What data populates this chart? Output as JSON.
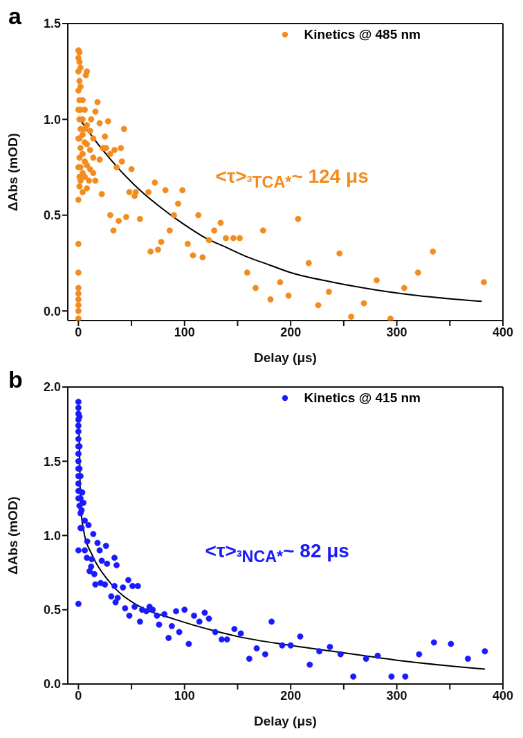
{
  "chart_data": [
    {
      "type": "scatter",
      "title": "a",
      "xlabel": "Delay (μs)",
      "ylabel": "ΔAbs (mOD)",
      "annotations": [
        "<τ>$_{³TCA*}$~ 124 μs"
      ],
      "xlim": [
        -10,
        400
      ],
      "ylim": [
        -0.05,
        1.5
      ],
      "xticks": [
        0,
        {
          "value": 50,
          "label": null
        },
        100,
        {
          "value": 150,
          "label": null
        },
        200,
        {
          "value": 250,
          "label": null
        },
        300,
        {
          "value": 350,
          "label": null
        },
        400
      ],
      "yticks": [
        {
          "value": 0,
          "label": "0.0"
        },
        {
          "value": 0.5,
          "label": "0.5"
        },
        {
          "value": 1,
          "label": "1.0"
        },
        {
          "value": 1.5,
          "label": "1.5"
        }
      ],
      "legend": "top right",
      "line_style": "solid",
      "series": [
        {
          "name": "Kinetics @ 485 nm",
          "marker": "circle",
          "color": "#f28c1e",
          "x": [
            0,
            0,
            0,
            0,
            0,
            0,
            0,
            0,
            0,
            0,
            0,
            0,
            0,
            0,
            0,
            0,
            1,
            1,
            1,
            1,
            1,
            1,
            1,
            1,
            1,
            2,
            2,
            2,
            2,
            2,
            2,
            2,
            4,
            4,
            4,
            4,
            4,
            4,
            6,
            6,
            6,
            6,
            6,
            8,
            8,
            8,
            8,
            8,
            11,
            11,
            11,
            14,
            14,
            14,
            7,
            18,
            28,
            43,
            20,
            25,
            12,
            16,
            23,
            26,
            34,
            40,
            30,
            41,
            20,
            36,
            50,
            10,
            16,
            22,
            48,
            53,
            54,
            66,
            72,
            82,
            98,
            94,
            30,
            38,
            45,
            58,
            33,
            90,
            86,
            78,
            75,
            68,
            103,
            108,
            117,
            113,
            123,
            128,
            134,
            139,
            146,
            152,
            174,
            159,
            167,
            181,
            190,
            198,
            207,
            217,
            246,
            226,
            236,
            257,
            269,
            281,
            294,
            307,
            320,
            334,
            382
          ],
          "values": [
            -0.04,
            0.0,
            0.03,
            0.06,
            0.09,
            0.12,
            0.2,
            0.35,
            0.58,
            0.75,
            0.9,
            1.05,
            1.15,
            1.25,
            1.32,
            1.36,
            1.35,
            1.3,
            1.2,
            1.1,
            1.0,
            0.9,
            0.8,
            0.7,
            0.65,
            1.27,
            1.17,
            1.05,
            0.95,
            0.85,
            0.75,
            0.68,
            1.1,
            1.0,
            0.92,
            0.82,
            0.72,
            0.62,
            1.05,
            0.95,
            0.88,
            0.78,
            0.7,
            1.25,
            0.97,
            0.87,
            0.76,
            0.64,
            0.94,
            0.84,
            0.74,
            0.9,
            0.8,
            0.72,
            1.23,
            1.09,
            0.99,
            0.95,
            0.98,
            0.91,
            1.0,
            1.04,
            0.85,
            0.85,
            0.84,
            0.85,
            0.82,
            0.78,
            0.79,
            0.75,
            0.74,
            0.68,
            0.68,
            0.61,
            0.62,
            0.6,
            0.62,
            0.62,
            0.67,
            0.63,
            0.63,
            0.56,
            0.5,
            0.47,
            0.49,
            0.48,
            0.42,
            0.5,
            0.42,
            0.36,
            0.32,
            0.31,
            0.35,
            0.29,
            0.28,
            0.5,
            0.37,
            0.42,
            0.46,
            0.38,
            0.38,
            0.38,
            0.42,
            0.2,
            0.12,
            0.06,
            0.15,
            0.08,
            0.48,
            0.25,
            0.3,
            0.03,
            0.1,
            -0.03,
            0.04,
            0.16,
            -0.04,
            0.12,
            0.2,
            0.31,
            0.15
          ]
        },
        {
          "type": "line",
          "marker": "none",
          "color": "#000000",
          "x": [
            0,
            20,
            40,
            60,
            80,
            100,
            120,
            140,
            160,
            180,
            200,
            240,
            280,
            320,
            380
          ],
          "values": [
            1.01,
            0.86,
            0.73,
            0.62,
            0.53,
            0.45,
            0.38,
            0.33,
            0.28,
            0.24,
            0.2,
            0.15,
            0.11,
            0.08,
            0.05
          ]
        }
      ]
    },
    {
      "type": "scatter",
      "title": "b",
      "xlabel": "Delay (μs)",
      "ylabel": "ΔAbs (mOD)",
      "annotations": [
        "<τ>$_{³NCA*}$~ 82 μs"
      ],
      "xlim": [
        -10,
        400
      ],
      "ylim": [
        0,
        2
      ],
      "xticks": [
        0,
        {
          "value": 50,
          "label": null
        },
        100,
        {
          "value": 150,
          "label": null
        },
        200,
        {
          "value": 250,
          "label": null
        },
        300,
        {
          "value": 350,
          "label": null
        },
        400
      ],
      "yticks": [
        {
          "value": 0,
          "label": "0.0"
        },
        {
          "value": 0.5,
          "label": "0.5"
        },
        {
          "value": 1,
          "label": "1.0"
        },
        {
          "value": 1.5,
          "label": "1.5"
        },
        {
          "value": 2,
          "label": "2.0"
        }
      ],
      "legend": "top right",
      "line_style": "solid",
      "series": [
        {
          "name": "Kinetics @ 415 nm",
          "marker": "circle",
          "color": "#1a1aff",
          "x": [
            0,
            0,
            0,
            0,
            0,
            0,
            0,
            0,
            0,
            0,
            0,
            0,
            0,
            0,
            0,
            0,
            0,
            1,
            1,
            1,
            1,
            1,
            2,
            2,
            2,
            2,
            3.6,
            4.7,
            3,
            6,
            9.5,
            3,
            14,
            8.3,
            18,
            26,
            20,
            6,
            8,
            12.6,
            22,
            27,
            12,
            10.5,
            15,
            34,
            36,
            16,
            21,
            25,
            34,
            42,
            47,
            51,
            56,
            31,
            37,
            35,
            44,
            48,
            53,
            58,
            60,
            67,
            64,
            70,
            74,
            81,
            76,
            85,
            88,
            92,
            95,
            100,
            104,
            109,
            114,
            119,
            123,
            129,
            135,
            140,
            147,
            153,
            161,
            168,
            176,
            182,
            192,
            200,
            209,
            218,
            227,
            237,
            247,
            259,
            271,
            282,
            295,
            308,
            321,
            335,
            351,
            367,
            383
          ],
          "values": [
            1.9,
            1.86,
            1.82,
            1.78,
            1.74,
            1.7,
            1.65,
            1.6,
            1.55,
            1.5,
            1.45,
            1.4,
            1.35,
            1.3,
            1.25,
            0.9,
            0.54,
            1.8,
            1.6,
            1.45,
            1.3,
            1.2,
            1.4,
            1.25,
            1.15,
            1.05,
            1.29,
            1.22,
            1.17,
            1.1,
            1.07,
            1.05,
            1.01,
            0.96,
            0.95,
            0.93,
            0.9,
            0.9,
            0.85,
            0.84,
            0.83,
            0.81,
            0.79,
            0.76,
            0.74,
            0.85,
            0.8,
            0.67,
            0.68,
            0.67,
            0.66,
            0.65,
            0.7,
            0.66,
            0.66,
            0.59,
            0.58,
            0.55,
            0.51,
            0.46,
            0.52,
            0.42,
            0.5,
            0.52,
            0.49,
            0.5,
            0.46,
            0.47,
            0.4,
            0.31,
            0.39,
            0.49,
            0.35,
            0.5,
            0.27,
            0.46,
            0.42,
            0.48,
            0.44,
            0.35,
            0.3,
            0.3,
            0.37,
            0.34,
            0.17,
            0.24,
            0.2,
            0.42,
            0.26,
            0.26,
            0.32,
            0.13,
            0.22,
            0.25,
            0.2,
            0.05,
            0.17,
            0.19,
            0.05,
            0.05,
            0.2,
            0.28,
            0.27,
            0.17,
            0.22
          ]
        },
        {
          "type": "line",
          "marker": "none",
          "color": "#000000",
          "x": [
            0,
            1,
            2,
            5,
            13.6,
            29,
            58,
            89,
            127,
            150,
            200,
            250,
            300,
            383
          ],
          "values": [
            1.85,
            1.6,
            1.21,
            1.03,
            0.86,
            0.69,
            0.52,
            0.44,
            0.36,
            0.32,
            0.26,
            0.21,
            0.16,
            0.1
          ]
        }
      ]
    }
  ]
}
